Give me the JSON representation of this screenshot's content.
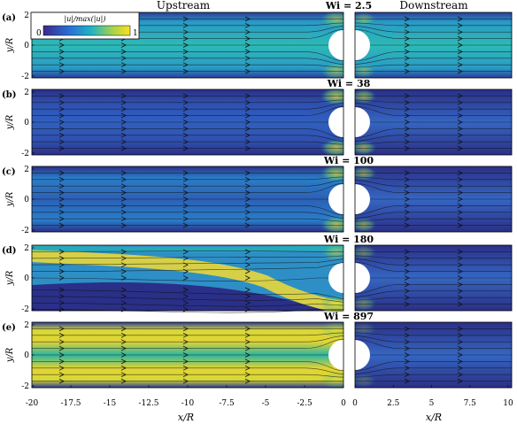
{
  "figure": {
    "header_left": "Upstream",
    "header_right": "Downstream",
    "y_axis_label": "y/R",
    "x_axis_label": "x/R",
    "colorbar": {
      "label": "|u|/max(|u|)",
      "min_label": "0",
      "max_label": "1"
    },
    "x_ticks_upstream": [
      "-20",
      "-17.5",
      "-15",
      "-12.5",
      "-10",
      "-7.5",
      "-5",
      "-2.5",
      "0"
    ],
    "x_ticks_downstream": [
      "0",
      "2.5",
      "5",
      "7.5",
      "10"
    ],
    "y_ticks": [
      "2",
      "0",
      "-2"
    ],
    "panels": [
      {
        "tag": "(a)",
        "wi": "Wi = 2.5"
      },
      {
        "tag": "(b)",
        "wi": "Wi = 38"
      },
      {
        "tag": "(c)",
        "wi": "Wi = 100"
      },
      {
        "tag": "(d)",
        "wi": "Wi = 180"
      },
      {
        "tag": "(e)",
        "wi": "Wi = 897"
      }
    ],
    "colors": {
      "low": "#2b1e74",
      "mid": "#1f83c4",
      "cyan": "#2bbab0",
      "high": "#f7e234",
      "background": "#ffffff"
    }
  }
}
